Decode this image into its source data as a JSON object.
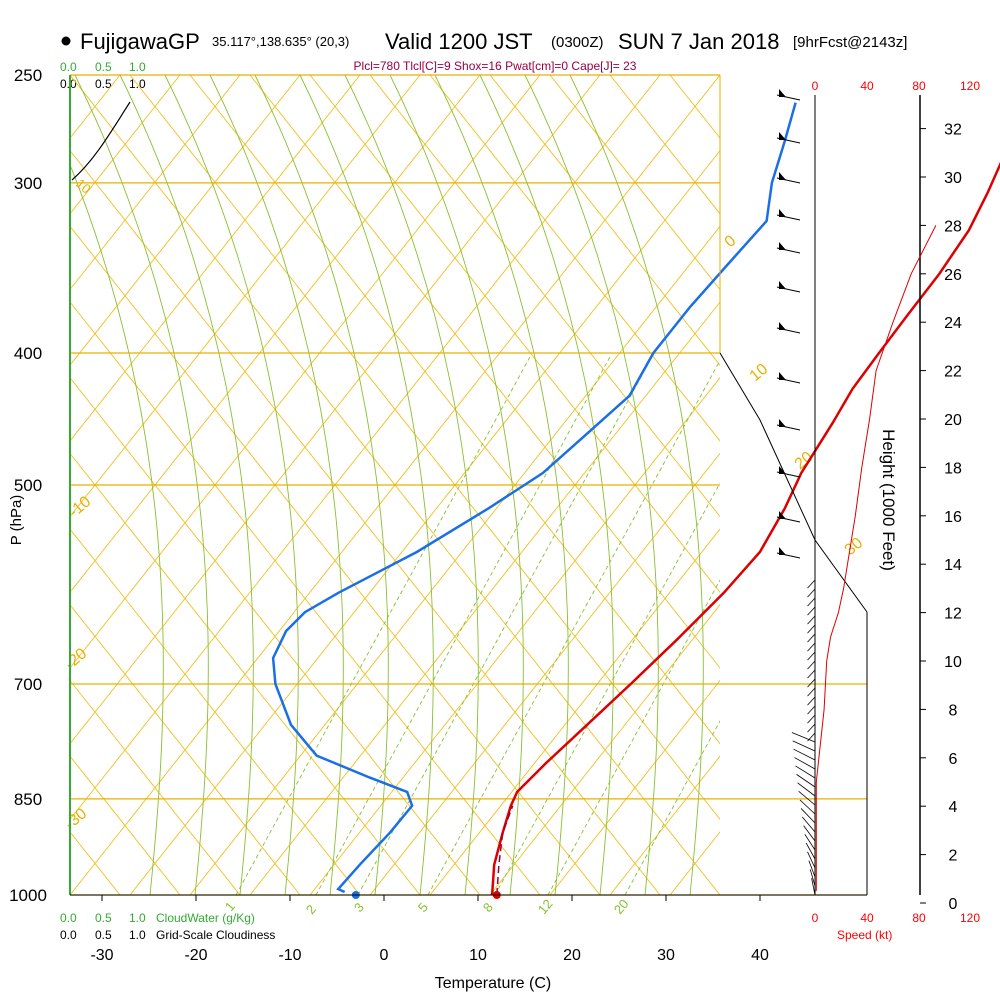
{
  "header": {
    "station": "FujigawaGP",
    "coords": "35.117°,138.635° (20,3)",
    "valid_main": "Valid 1200 JST",
    "valid_z": "(0300Z)",
    "date": "SUN 7 Jan 2018",
    "forecast": "[9hrFcst@2143z]"
  },
  "indices": "Plcl=780 Tlcl[C]=9 Shox=16 Pwat[cm]=0 Cape[J]= 23",
  "scale_labels": {
    "top_green": [
      "0.0",
      "0.5",
      "1.0"
    ],
    "top_black": [
      "0.0",
      "0.5",
      "1.0"
    ],
    "bottom_green": [
      "0.0",
      "0.5",
      "1.0"
    ],
    "bottom_black": [
      "0.0",
      "0.5",
      "1.0"
    ],
    "cloudwater": "CloudWater (g/Kg)",
    "cloudiness": "Grid-Scale Cloudiness"
  },
  "speed_axis": {
    "label": "Speed (kt)",
    "ticks_top": [
      "0",
      "40",
      "80",
      "120"
    ],
    "ticks_bottom": [
      "0",
      "40",
      "80",
      "120"
    ],
    "color": "#ff0000"
  },
  "chart_data": {
    "type": "line",
    "title": "",
    "xlabel": "Temperature (C)",
    "ylabel": "P (hPa)",
    "y2label": "Height (1000 Feet)",
    "x_ticks": [
      -30,
      -20,
      -10,
      0,
      10,
      20,
      30,
      40
    ],
    "y_ticks_hpa": [
      250,
      300,
      400,
      500,
      700,
      850,
      1000
    ],
    "y2_ticks_kft": [
      0,
      2,
      4,
      6,
      8,
      10,
      12,
      14,
      16,
      18,
      20,
      22,
      24,
      26,
      28,
      30,
      32
    ],
    "isotherm_labels": [
      "0",
      "10",
      "20",
      "30",
      "-10",
      "-20",
      "-30"
    ],
    "mixing_ratio_labels": [
      "1",
      "2",
      "3",
      "5",
      "8",
      "12",
      "20"
    ],
    "dry_adiabat_label": "10",
    "colors": {
      "temperature": "#dd0000",
      "dewpoint": "#1a6fe6",
      "isobar": "#e8b000",
      "isotherm": "#f0c020",
      "adiabat": "#88c030",
      "cloud": "#33aa33"
    },
    "series": [
      {
        "name": "Temperature",
        "points": [
          {
            "p": 1000,
            "t": 11.5
          },
          {
            "p": 950,
            "t": 8.5
          },
          {
            "p": 900,
            "t": 6
          },
          {
            "p": 860,
            "t": 4
          },
          {
            "p": 840,
            "t": 3.2
          },
          {
            "p": 800,
            "t": 3.2
          },
          {
            "p": 750,
            "t": 3.5
          },
          {
            "p": 700,
            "t": 3.8
          },
          {
            "p": 650,
            "t": 4.0
          },
          {
            "p": 600,
            "t": 4.0
          },
          {
            "p": 560,
            "t": 3.5
          },
          {
            "p": 520,
            "t": 1.5
          },
          {
            "p": 490,
            "t": -0.5
          },
          {
            "p": 450,
            "t": -2.5
          },
          {
            "p": 425,
            "t": -4.0
          },
          {
            "p": 400,
            "t": -5.0
          },
          {
            "p": 375,
            "t": -6.0
          },
          {
            "p": 350,
            "t": -7.0
          },
          {
            "p": 325,
            "t": -8.5
          },
          {
            "p": 305,
            "t": -10.5
          },
          {
            "p": 280,
            "t": -13.5
          },
          {
            "p": 262,
            "t": -16.5
          }
        ]
      },
      {
        "name": "Dewpoint",
        "points": [
          {
            "p": 995,
            "t": -4.5
          },
          {
            "p": 990,
            "t": -5.5
          },
          {
            "p": 950,
            "t": -5.8
          },
          {
            "p": 900,
            "t": -6.0
          },
          {
            "p": 860,
            "t": -6.5
          },
          {
            "p": 840,
            "t": -8.5
          },
          {
            "p": 820,
            "t": -14
          },
          {
            "p": 790,
            "t": -22
          },
          {
            "p": 750,
            "t": -28
          },
          {
            "p": 700,
            "t": -34
          },
          {
            "p": 670,
            "t": -37
          },
          {
            "p": 640,
            "t": -38.5
          },
          {
            "p": 620,
            "t": -38.5
          },
          {
            "p": 600,
            "t": -37
          },
          {
            "p": 560,
            "t": -33
          },
          {
            "p": 520,
            "t": -30
          },
          {
            "p": 490,
            "t": -28
          },
          {
            "p": 460,
            "t": -27.5
          },
          {
            "p": 430,
            "t": -27
          },
          {
            "p": 400,
            "t": -29
          },
          {
            "p": 370,
            "t": -30
          },
          {
            "p": 345,
            "t": -30.5
          },
          {
            "p": 320,
            "t": -31
          },
          {
            "p": 300,
            "t": -34.5
          },
          {
            "p": 280,
            "t": -37.5
          },
          {
            "p": 262,
            "t": -40.5
          }
        ]
      },
      {
        "name": "Parcel",
        "points": [
          {
            "p": 1000,
            "t": 12
          },
          {
            "p": 950,
            "t": 9
          },
          {
            "p": 900,
            "t": 6
          },
          {
            "p": 860,
            "t": 4.2
          }
        ]
      }
    ],
    "surface_points": {
      "temperature": {
        "p": 1000,
        "t": 12
      },
      "dewpoint": {
        "p": 1000,
        "t": -3
      }
    },
    "height_profile_kt": [
      {
        "kft": 0.5,
        "kt": 1
      },
      {
        "kft": 2,
        "kt": 1
      },
      {
        "kft": 4,
        "kt": 1
      },
      {
        "kft": 5,
        "kt": 1
      },
      {
        "kft": 6,
        "kt": 3
      },
      {
        "kft": 7,
        "kt": 5
      },
      {
        "kft": 8,
        "kt": 7
      },
      {
        "kft": 9,
        "kt": 8
      },
      {
        "kft": 10,
        "kt": 9
      },
      {
        "kft": 11,
        "kt": 12
      },
      {
        "kft": 12,
        "kt": 18
      },
      {
        "kft": 13,
        "kt": 22
      },
      {
        "kft": 14,
        "kt": 25
      },
      {
        "kft": 16,
        "kt": 31
      },
      {
        "kft": 18,
        "kt": 36
      },
      {
        "kft": 20,
        "kt": 42
      },
      {
        "kft": 22,
        "kt": 47
      },
      {
        "kft": 24,
        "kt": 60
      },
      {
        "kft": 26,
        "kt": 74
      },
      {
        "kft": 28,
        "kt": 93
      }
    ]
  }
}
